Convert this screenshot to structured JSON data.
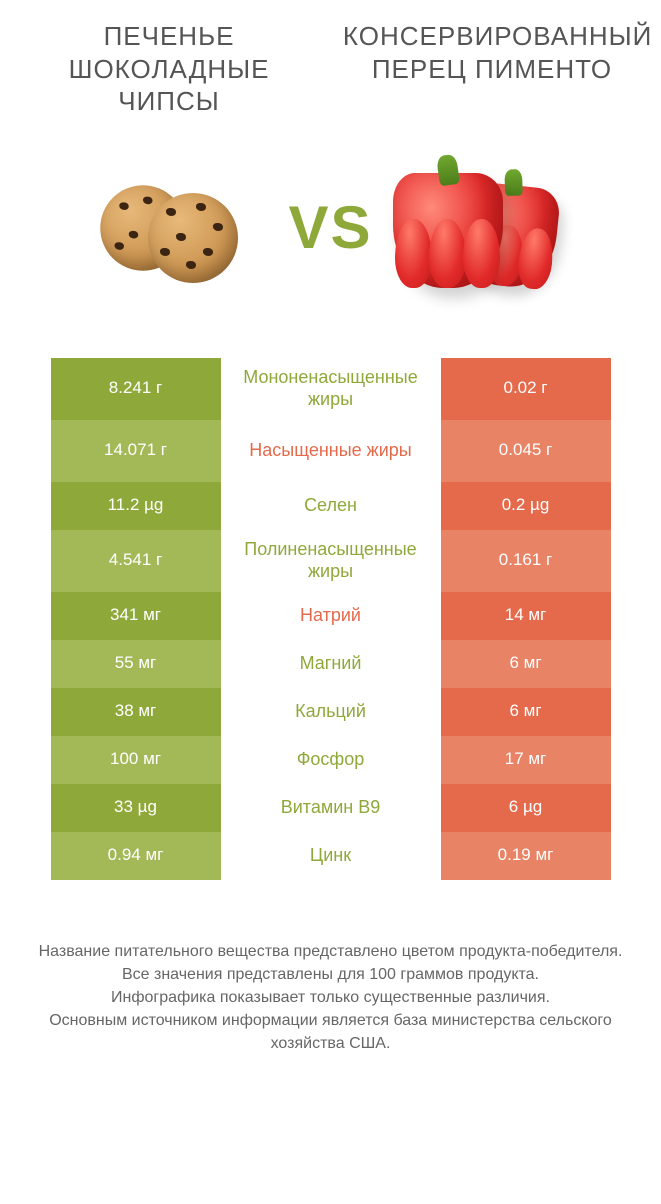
{
  "titles": {
    "left": "ПЕЧЕНЬЕ ШОКОЛАДНЫЕ ЧИПСЫ",
    "right": "КОНСЕРВИРОВАННЫЙ ПЕРЕЦ ПИМЕНТО"
  },
  "vs_text": "VS",
  "colors": {
    "left_dark": "#8fa83a",
    "left_light": "#a3b958",
    "right_dark": "#e46a4b",
    "right_light": "#e88366",
    "mid_bg": "#ffffff",
    "label_green": "#8fa83a",
    "label_orange": "#e46a4b",
    "vs_color": "#8fa83a",
    "title_color": "#555555",
    "footer_color": "#666666"
  },
  "row_heights": {
    "tall": 62,
    "short": 48
  },
  "rows": [
    {
      "left": "8.241 г",
      "label": "Мононенасыщенные жиры",
      "right": "0.02 г",
      "winner": "left",
      "tall": true
    },
    {
      "left": "14.071 г",
      "label": "Насыщенные жиры",
      "right": "0.045 г",
      "winner": "right",
      "tall": true
    },
    {
      "left": "11.2 µg",
      "label": "Селен",
      "right": "0.2 µg",
      "winner": "left",
      "tall": false
    },
    {
      "left": "4.541 г",
      "label": "Полиненасыщенные жиры",
      "right": "0.161 г",
      "winner": "left",
      "tall": true
    },
    {
      "left": "341 мг",
      "label": "Натрий",
      "right": "14 мг",
      "winner": "right",
      "tall": false
    },
    {
      "left": "55 мг",
      "label": "Магний",
      "right": "6 мг",
      "winner": "left",
      "tall": false
    },
    {
      "left": "38 мг",
      "label": "Кальций",
      "right": "6 мг",
      "winner": "left",
      "tall": false
    },
    {
      "left": "100 мг",
      "label": "Фосфор",
      "right": "17 мг",
      "winner": "left",
      "tall": false
    },
    {
      "left": "33 µg",
      "label": "Витамин B9",
      "right": "6 µg",
      "winner": "left",
      "tall": false
    },
    {
      "left": "0.94 мг",
      "label": "Цинк",
      "right": "0.19 мг",
      "winner": "left",
      "tall": false
    }
  ],
  "footer_lines": [
    "Название питательного вещества представлено цветом продукта-победителя.",
    "Все значения представлены для 100 граммов продукта.",
    "Инфографика показывает только существенные различия.",
    "Основным источником информации является база министерства сельского хозяйства США."
  ]
}
